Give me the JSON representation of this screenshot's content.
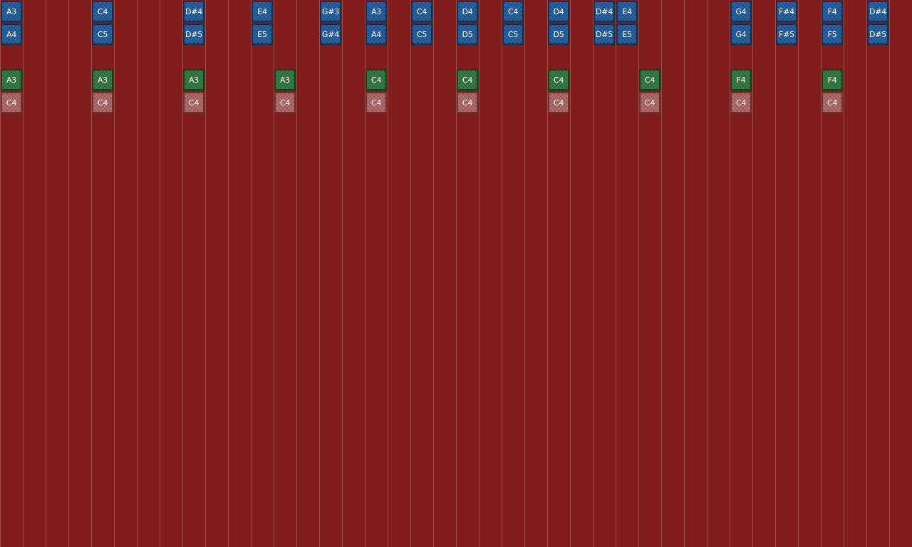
{
  "colors": {
    "background": "#801c1c",
    "grid_line": "#af7878",
    "melody_note": "#1a5290",
    "chord_note": "#2a6b35",
    "bass_note": "#a05858"
  },
  "tracks": {
    "melody_high": [
      {
        "step": 0,
        "label": "A3"
      },
      {
        "step": 4,
        "label": "C4"
      },
      {
        "step": 8,
        "label": "D#4"
      },
      {
        "step": 11,
        "label": "E4"
      },
      {
        "step": 14,
        "label": "G#3"
      },
      {
        "step": 16,
        "label": "A3"
      },
      {
        "step": 18,
        "label": "C4"
      },
      {
        "step": 20,
        "label": "D4"
      },
      {
        "step": 22,
        "label": "C4"
      },
      {
        "step": 24,
        "label": "D4"
      },
      {
        "step": 26,
        "label": "D#4"
      },
      {
        "step": 27,
        "label": "E4"
      },
      {
        "step": 32,
        "label": "G4"
      },
      {
        "step": 34,
        "label": "F#4"
      },
      {
        "step": 36,
        "label": "F4"
      },
      {
        "step": 38,
        "label": "D#4"
      }
    ],
    "melody_octave": [
      {
        "step": 0,
        "label": "A4"
      },
      {
        "step": 4,
        "label": "C5"
      },
      {
        "step": 8,
        "label": "D#5"
      },
      {
        "step": 11,
        "label": "E5"
      },
      {
        "step": 14,
        "label": "G#4"
      },
      {
        "step": 16,
        "label": "A4"
      },
      {
        "step": 18,
        "label": "C5"
      },
      {
        "step": 20,
        "label": "D5"
      },
      {
        "step": 22,
        "label": "C5"
      },
      {
        "step": 24,
        "label": "D5"
      },
      {
        "step": 26,
        "label": "D#5"
      },
      {
        "step": 27,
        "label": "E5"
      },
      {
        "step": 32,
        "label": "G4"
      },
      {
        "step": 34,
        "label": "F#5"
      },
      {
        "step": 36,
        "label": "F5"
      },
      {
        "step": 38,
        "label": "D#5"
      }
    ],
    "chord": [
      {
        "step": 0,
        "label": "A3"
      },
      {
        "step": 4,
        "label": "A3"
      },
      {
        "step": 8,
        "label": "A3"
      },
      {
        "step": 12,
        "label": "A3"
      },
      {
        "step": 16,
        "label": "C4"
      },
      {
        "step": 20,
        "label": "C4"
      },
      {
        "step": 24,
        "label": "C4"
      },
      {
        "step": 28,
        "label": "C4"
      },
      {
        "step": 32,
        "label": "F4"
      },
      {
        "step": 36,
        "label": "F4"
      }
    ],
    "bass": [
      {
        "step": 0,
        "label": "C4"
      },
      {
        "step": 4,
        "label": "C4"
      },
      {
        "step": 8,
        "label": "C4"
      },
      {
        "step": 12,
        "label": "C4"
      },
      {
        "step": 16,
        "label": "C4"
      },
      {
        "step": 20,
        "label": "C4"
      },
      {
        "step": 24,
        "label": "C4"
      },
      {
        "step": 28,
        "label": "C4"
      },
      {
        "step": 32,
        "label": "C4"
      },
      {
        "step": 36,
        "label": "C4"
      }
    ]
  }
}
